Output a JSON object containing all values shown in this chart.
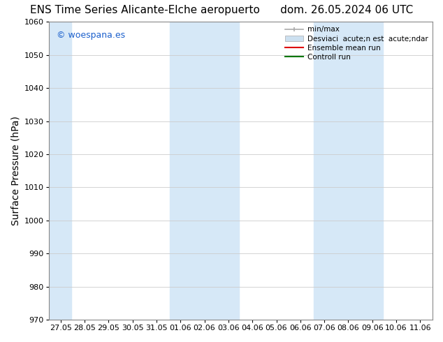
{
  "title_left": "ENS Time Series Alicante-Elche aeropuerto",
  "title_right": "dom. 26.05.2024 06 UTC",
  "ylabel": "Surface Pressure (hPa)",
  "ylim": [
    970,
    1060
  ],
  "yticks": [
    970,
    980,
    990,
    1000,
    1010,
    1020,
    1030,
    1040,
    1050,
    1060
  ],
  "xtick_labels": [
    "27.05",
    "28.05",
    "29.05",
    "30.05",
    "31.05",
    "01.06",
    "02.06",
    "03.06",
    "04.06",
    "05.06",
    "06.06",
    "07.06",
    "08.06",
    "09.06",
    "10.06",
    "11.06"
  ],
  "band_color": "#d6e8f7",
  "background_color": "#ffffff",
  "watermark_text": "© woespana.es",
  "watermark_color": "#1a5fcc",
  "leg_minmax_label": "min/max",
  "leg_std_label": "Desviaci  acute;n est  acute;ndar",
  "leg_ensemble_label": "Ensemble mean run",
  "leg_control_label": "Controll run",
  "title_fontsize": 11,
  "tick_fontsize": 8,
  "ylabel_fontsize": 10,
  "grid_color": "#cccccc",
  "spine_color": "#888888"
}
